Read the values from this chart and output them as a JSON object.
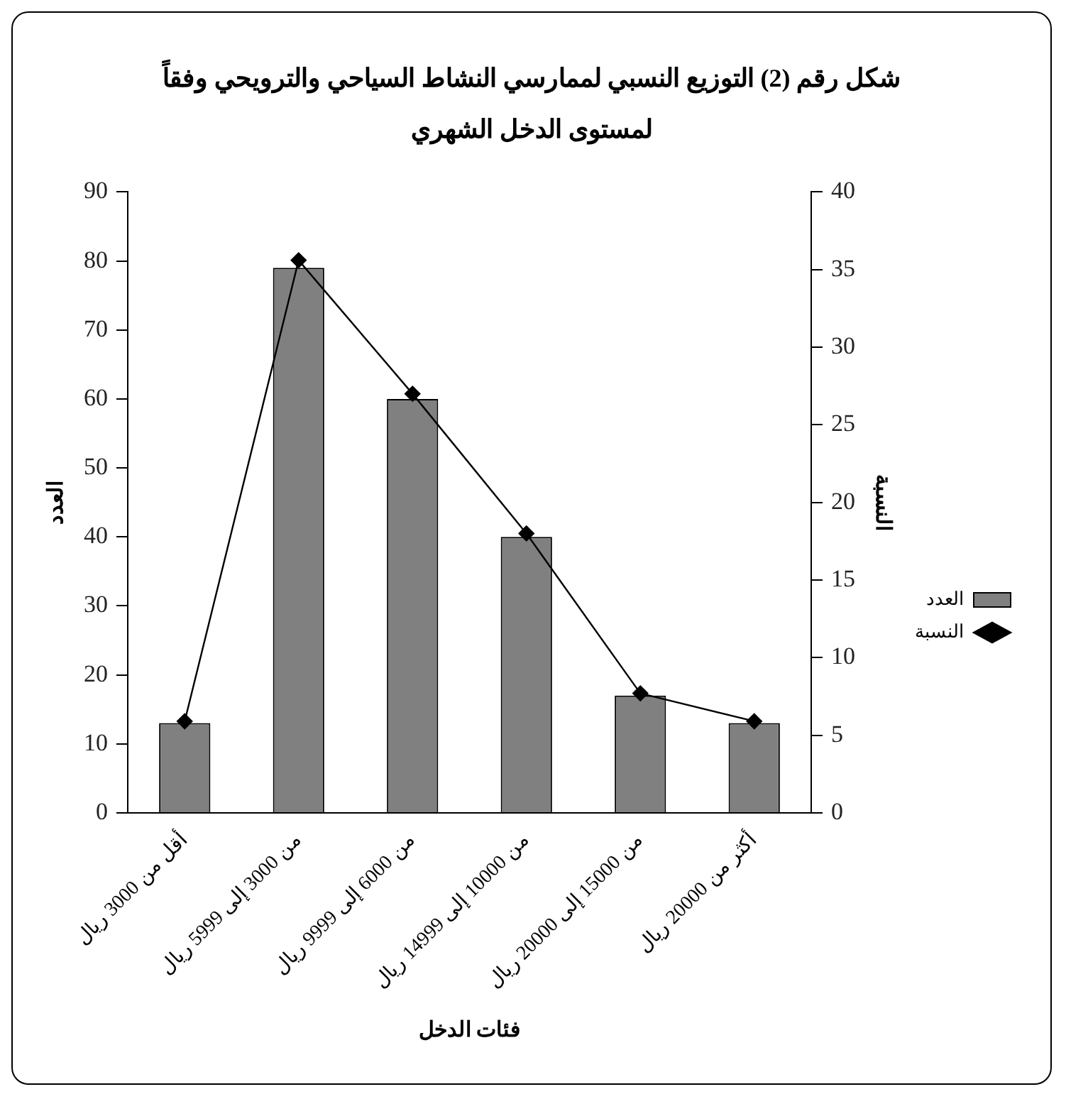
{
  "chart_data": {
    "type": "bar",
    "title": "شكل رقم (2) التوزيع النسبي لممارسي النشاط السياحي والترويحي وفقاً لمستوى الدخل الشهري",
    "xlabel": "فئات الدخل",
    "ylabel": "العدد",
    "y2label": "النسبة",
    "categories": [
      "أقل من 3000 ريال",
      "من 3000 إلى 5999 ريال",
      "من 6000 إلى 9999 ريال",
      "من 10000 إلى 14999 ريال",
      "من 15000 إلى 20000 ريال",
      "أكثر من 20000 ريال"
    ],
    "series": [
      {
        "name": "العدد",
        "color": "#808080",
        "values": [
          13,
          79,
          60,
          40,
          17,
          13
        ]
      },
      {
        "name": "النسبة",
        "type": "line",
        "axis": "y2",
        "color": "#000000",
        "marker": "diamond",
        "values": [
          5.9,
          35.6,
          27.0,
          18.0,
          7.7,
          5.9
        ]
      }
    ],
    "ylim": [
      0,
      90
    ],
    "yticks": [
      0,
      10,
      20,
      30,
      40,
      50,
      60,
      70,
      80,
      90
    ],
    "y2lim": [
      0,
      40
    ],
    "y2ticks": [
      0,
      5,
      10,
      15,
      20,
      25,
      30,
      35,
      40
    ],
    "grid": false,
    "legend": "right"
  }
}
